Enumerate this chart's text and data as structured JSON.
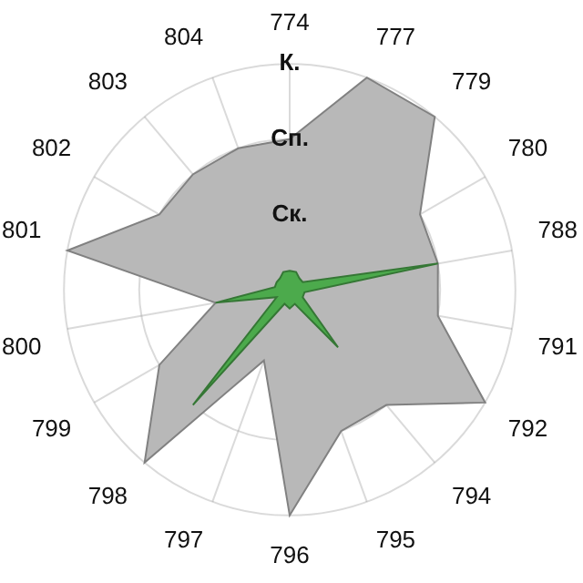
{
  "chart_data": {
    "type": "radar",
    "categories": [
      "774",
      "777",
      "779",
      "780",
      "788",
      "791",
      "792",
      "794",
      "795",
      "796",
      "797",
      "798",
      "799",
      "800",
      "801",
      "802",
      "803",
      "804"
    ],
    "series": [
      {
        "color": "#b8b8b8",
        "values": [
          2,
          3,
          3,
          2,
          2,
          2,
          3,
          2,
          2,
          3,
          1,
          3,
          2,
          1,
          3,
          2,
          2,
          2
        ]
      },
      {
        "color": "#4caa4c",
        "values": [
          0.25,
          0.25,
          0.2,
          0.2,
          2,
          0.2,
          0.2,
          1,
          0.2,
          0.25,
          0.2,
          2,
          0.2,
          1,
          0.2,
          0.2,
          0.2,
          0.25
        ]
      }
    ],
    "ylim": [
      0,
      3
    ],
    "yticks": [
      {
        "value": 1,
        "label": "Ск."
      },
      {
        "value": 2,
        "label": "Сп."
      },
      {
        "value": 3,
        "label": "К."
      }
    ],
    "grid": true,
    "legend": false
  }
}
